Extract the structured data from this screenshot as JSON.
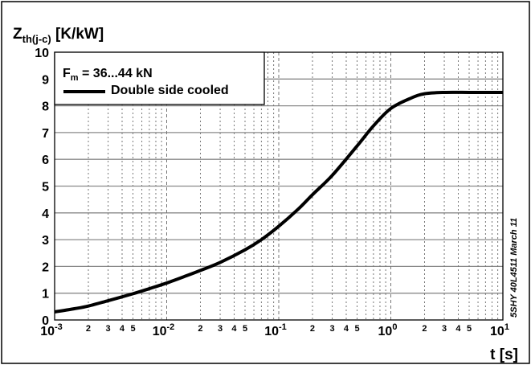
{
  "chart_data": {
    "type": "line",
    "title": "",
    "ylabel": {
      "main": "Z",
      "sub": "th(j-c)",
      "unit": "[K/kW]"
    },
    "xlabel": "t [s]",
    "x_scale": "log",
    "xlim": [
      0.001,
      10
    ],
    "ylim": [
      0,
      10
    ],
    "grid": true,
    "legend_position": "top-left",
    "y_ticks": [
      "0",
      "1",
      "2",
      "3",
      "4",
      "5",
      "6",
      "7",
      "8",
      "9",
      "10"
    ],
    "x_major_ticks": [
      {
        "base": "10",
        "exp": "-3"
      },
      {
        "base": "10",
        "exp": "-2"
      },
      {
        "base": "10",
        "exp": "-1"
      },
      {
        "base": "10",
        "exp": "0"
      },
      {
        "base": "10",
        "exp": "1"
      }
    ],
    "x_minor_labels": [
      "2",
      "3",
      "4",
      "5"
    ],
    "legend": {
      "condition": {
        "main": "F",
        "sub": "m",
        "rest": " = 36...44 kN"
      },
      "entry": "Double side cooled"
    },
    "side_note": "5SHY 40L4511 March 11",
    "series": [
      {
        "name": "Double side cooled",
        "color": "#000000",
        "x": [
          0.001,
          0.0015,
          0.002,
          0.003,
          0.005,
          0.007,
          0.01,
          0.015,
          0.02,
          0.03,
          0.05,
          0.07,
          0.1,
          0.15,
          0.2,
          0.3,
          0.5,
          0.7,
          1,
          1.5,
          2,
          3,
          5,
          7,
          10
        ],
        "y": [
          0.3,
          0.42,
          0.52,
          0.72,
          0.98,
          1.17,
          1.38,
          1.65,
          1.85,
          2.15,
          2.62,
          3.0,
          3.5,
          4.15,
          4.68,
          5.4,
          6.5,
          7.25,
          7.9,
          8.28,
          8.45,
          8.5,
          8.5,
          8.5,
          8.5
        ]
      }
    ]
  }
}
